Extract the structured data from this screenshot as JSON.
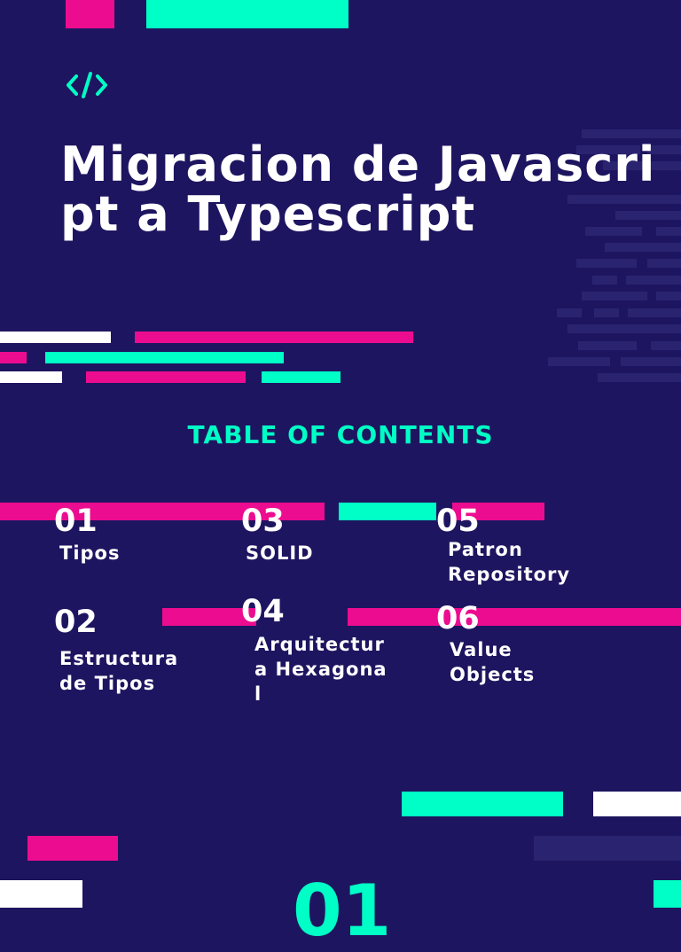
{
  "slide": {
    "title": "Migracion de Javascript a Typescript",
    "toc_heading": "TABLE OF CONTENTS",
    "bottom_number": "01",
    "icon": "code-brackets-icon"
  },
  "toc": [
    {
      "number": "01",
      "label": "Tipos"
    },
    {
      "number": "02",
      "label": "Estructura de Tipos"
    },
    {
      "number": "03",
      "label": "SOLID"
    },
    {
      "number": "04",
      "label": "Arquitectura Hexagonal"
    },
    {
      "number": "05",
      "label": "Patron Repository"
    },
    {
      "number": "06",
      "label": "Value Objects"
    }
  ],
  "colors": {
    "background": "#1e1560",
    "pink": "#ec0c8f",
    "teal": "#00ffc6",
    "white": "#ffffff"
  }
}
